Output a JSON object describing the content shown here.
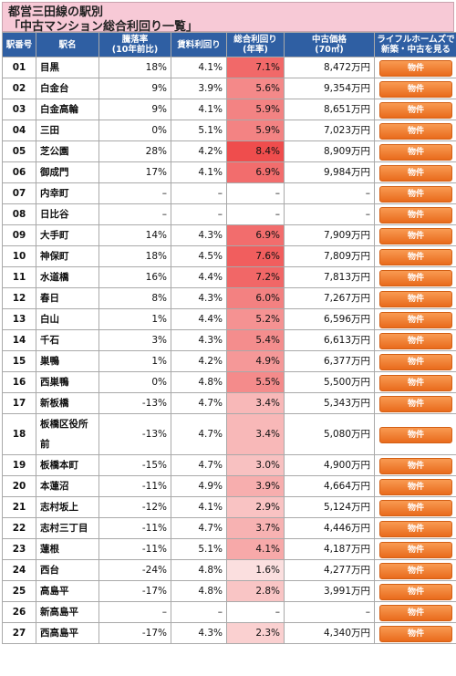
{
  "title": {
    "line1": "都営三田線の駅別",
    "line2": "「中古マンション総合利回り一覧」"
  },
  "headers": {
    "no": "駅番号",
    "station": "駅名",
    "drop": [
      "騰落率",
      "(10年前比)"
    ],
    "rent": "賃料利回り",
    "total": [
      "総合利回り",
      "(年率)"
    ],
    "price": [
      "中古価格",
      "(70㎡)"
    ],
    "lh": [
      "ライフルホームズで",
      "新築・中古を見る"
    ]
  },
  "button_label": "物件",
  "colors": {
    "header_bg": "#2f5fa3",
    "title_bg": "#f7c9d6",
    "button": "#f07a2c",
    "heat_low": "#fbe1e1",
    "heat_high": "#ef4b4b"
  },
  "rows": [
    {
      "no": "01",
      "station": "目黒",
      "drop": "18%",
      "rent": "4.1%",
      "total": "7.1%",
      "total_value": 7.1,
      "price": "8,472万円"
    },
    {
      "no": "02",
      "station": "白金台",
      "drop": "9%",
      "rent": "3.9%",
      "total": "5.6%",
      "total_value": 5.6,
      "price": "9,354万円"
    },
    {
      "no": "03",
      "station": "白金高輪",
      "drop": "9%",
      "rent": "4.1%",
      "total": "5.9%",
      "total_value": 5.9,
      "price": "8,651万円"
    },
    {
      "no": "04",
      "station": "三田",
      "drop": "0%",
      "rent": "5.1%",
      "total": "5.9%",
      "total_value": 5.9,
      "price": "7,023万円"
    },
    {
      "no": "05",
      "station": "芝公園",
      "drop": "28%",
      "rent": "4.2%",
      "total": "8.4%",
      "total_value": 8.4,
      "price": "8,909万円"
    },
    {
      "no": "06",
      "station": "御成門",
      "drop": "17%",
      "rent": "4.1%",
      "total": "6.9%",
      "total_value": 6.9,
      "price": "9,984万円"
    },
    {
      "no": "07",
      "station": "内幸町",
      "drop": "–",
      "rent": "–",
      "total": "–",
      "total_value": null,
      "price": "–"
    },
    {
      "no": "08",
      "station": "日比谷",
      "drop": "–",
      "rent": "–",
      "total": "–",
      "total_value": null,
      "price": "–"
    },
    {
      "no": "09",
      "station": "大手町",
      "drop": "14%",
      "rent": "4.3%",
      "total": "6.9%",
      "total_value": 6.9,
      "price": "7,909万円"
    },
    {
      "no": "10",
      "station": "神保町",
      "drop": "18%",
      "rent": "4.5%",
      "total": "7.6%",
      "total_value": 7.6,
      "price": "7,809万円"
    },
    {
      "no": "11",
      "station": "水道橋",
      "drop": "16%",
      "rent": "4.4%",
      "total": "7.2%",
      "total_value": 7.2,
      "price": "7,813万円"
    },
    {
      "no": "12",
      "station": "春日",
      "drop": "8%",
      "rent": "4.3%",
      "total": "6.0%",
      "total_value": 6.0,
      "price": "7,267万円"
    },
    {
      "no": "13",
      "station": "白山",
      "drop": "1%",
      "rent": "4.4%",
      "total": "5.2%",
      "total_value": 5.2,
      "price": "6,596万円"
    },
    {
      "no": "14",
      "station": "千石",
      "drop": "3%",
      "rent": "4.3%",
      "total": "5.4%",
      "total_value": 5.4,
      "price": "6,613万円"
    },
    {
      "no": "15",
      "station": "巣鴨",
      "drop": "1%",
      "rent": "4.2%",
      "total": "4.9%",
      "total_value": 4.9,
      "price": "6,377万円"
    },
    {
      "no": "16",
      "station": "西巣鴨",
      "drop": "0%",
      "rent": "4.8%",
      "total": "5.5%",
      "total_value": 5.5,
      "price": "5,500万円"
    },
    {
      "no": "17",
      "station": "新板橋",
      "drop": "-13%",
      "rent": "4.7%",
      "total": "3.4%",
      "total_value": 3.4,
      "price": "5,343万円"
    },
    {
      "no": "18",
      "station": "板橋区役所前",
      "drop": "-13%",
      "rent": "4.7%",
      "total": "3.4%",
      "total_value": 3.4,
      "price": "5,080万円"
    },
    {
      "no": "19",
      "station": "板橋本町",
      "drop": "-15%",
      "rent": "4.7%",
      "total": "3.0%",
      "total_value": 3.0,
      "price": "4,900万円"
    },
    {
      "no": "20",
      "station": "本蓮沼",
      "drop": "-11%",
      "rent": "4.9%",
      "total": "3.9%",
      "total_value": 3.9,
      "price": "4,664万円"
    },
    {
      "no": "21",
      "station": "志村坂上",
      "drop": "-12%",
      "rent": "4.1%",
      "total": "2.9%",
      "total_value": 2.9,
      "price": "5,124万円"
    },
    {
      "no": "22",
      "station": "志村三丁目",
      "drop": "-11%",
      "rent": "4.7%",
      "total": "3.7%",
      "total_value": 3.7,
      "price": "4,446万円"
    },
    {
      "no": "23",
      "station": "蓮根",
      "drop": "-11%",
      "rent": "5.1%",
      "total": "4.1%",
      "total_value": 4.1,
      "price": "4,187万円"
    },
    {
      "no": "24",
      "station": "西台",
      "drop": "-24%",
      "rent": "4.8%",
      "total": "1.6%",
      "total_value": 1.6,
      "price": "4,277万円"
    },
    {
      "no": "25",
      "station": "高島平",
      "drop": "-17%",
      "rent": "4.8%",
      "total": "2.8%",
      "total_value": 2.8,
      "price": "3,991万円"
    },
    {
      "no": "26",
      "station": "新高島平",
      "drop": "–",
      "rent": "–",
      "total": "–",
      "total_value": null,
      "price": "–"
    },
    {
      "no": "27",
      "station": "西高島平",
      "drop": "-17%",
      "rent": "4.3%",
      "total": "2.3%",
      "total_value": 2.3,
      "price": "4,340万円"
    }
  ]
}
